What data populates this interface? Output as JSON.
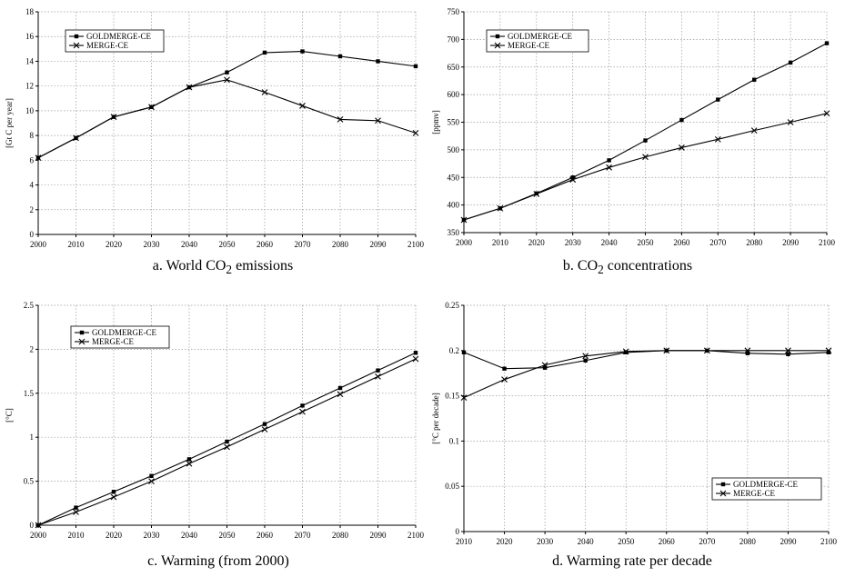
{
  "chart_data": [
    {
      "type": "line",
      "id": "a",
      "caption": {
        "prefix": "a. World CO",
        "sub": "2",
        "suffix": " emissions"
      },
      "ylabel": "[Gt C per year]",
      "x": [
        2000,
        2010,
        2020,
        2030,
        2040,
        2050,
        2060,
        2070,
        2080,
        2090,
        2100
      ],
      "xlim": [
        2000,
        2100
      ],
      "ylim": [
        0,
        18
      ],
      "yticks": [
        0,
        2,
        4,
        6,
        8,
        10,
        12,
        14,
        16,
        18
      ],
      "grid": true,
      "legend_position": "top-left",
      "series": [
        {
          "name": "GOLDMERGE-CE",
          "marker": "square",
          "values": [
            6.2,
            7.8,
            9.5,
            10.3,
            11.9,
            13.1,
            14.7,
            14.8,
            14.4,
            14.0,
            13.6
          ]
        },
        {
          "name": "MERGE-CE",
          "marker": "x",
          "values": [
            6.2,
            7.8,
            9.5,
            10.3,
            11.9,
            12.5,
            11.5,
            10.4,
            9.3,
            9.2,
            8.2
          ]
        }
      ]
    },
    {
      "type": "line",
      "id": "b",
      "caption": {
        "prefix": "b. CO",
        "sub": "2",
        "suffix": " concentrations"
      },
      "ylabel": "[ppmv]",
      "x": [
        2000,
        2010,
        2020,
        2030,
        2040,
        2050,
        2060,
        2070,
        2080,
        2090,
        2100
      ],
      "xlim": [
        2000,
        2100
      ],
      "ylim": [
        350,
        750
      ],
      "yticks": [
        350,
        400,
        450,
        500,
        550,
        600,
        650,
        700,
        750
      ],
      "grid": true,
      "legend_position": "top-left",
      "series": [
        {
          "name": "GOLDMERGE-CE",
          "marker": "square",
          "values": [
            373,
            394,
            421,
            450,
            481,
            517,
            554,
            591,
            627,
            658,
            693
          ]
        },
        {
          "name": "MERGE-CE",
          "marker": "x",
          "values": [
            373,
            394,
            420,
            446,
            468,
            487,
            504,
            519,
            535,
            550,
            566
          ]
        }
      ]
    },
    {
      "type": "line",
      "id": "c",
      "caption": {
        "prefix": "c. Warming (from 2000)",
        "sub": "",
        "suffix": ""
      },
      "ylabel": "[°C]",
      "x": [
        2000,
        2010,
        2020,
        2030,
        2040,
        2050,
        2060,
        2070,
        2080,
        2090,
        2100
      ],
      "xlim": [
        2000,
        2100
      ],
      "ylim": [
        0,
        2.5
      ],
      "yticks": [
        0,
        0.5,
        1,
        1.5,
        2,
        2.5
      ],
      "grid": true,
      "legend_position": "top-left",
      "series": [
        {
          "name": "GOLDMERGE-CE",
          "marker": "square",
          "values": [
            0,
            0.2,
            0.38,
            0.56,
            0.75,
            0.95,
            1.15,
            1.36,
            1.56,
            1.76,
            1.96
          ]
        },
        {
          "name": "MERGE-CE",
          "marker": "x",
          "values": [
            0,
            0.15,
            0.32,
            0.5,
            0.7,
            0.89,
            1.09,
            1.29,
            1.49,
            1.69,
            1.89
          ]
        }
      ]
    },
    {
      "type": "line",
      "id": "d",
      "caption": {
        "prefix": "d. Warming rate per decade",
        "sub": "",
        "suffix": ""
      },
      "ylabel": "[°C per decade]",
      "x": [
        2010,
        2020,
        2030,
        2040,
        2050,
        2060,
        2070,
        2080,
        2090,
        2100
      ],
      "xlim": [
        2010,
        2100
      ],
      "ylim": [
        0,
        0.25
      ],
      "yticks": [
        0,
        0.05,
        0.1,
        0.15,
        0.2,
        0.25
      ],
      "grid": true,
      "legend_position": "bottom-right",
      "series": [
        {
          "name": "GOLDMERGE-CE",
          "marker": "square",
          "values": [
            0.198,
            0.18,
            0.181,
            0.189,
            0.198,
            0.2,
            0.2,
            0.197,
            0.196,
            0.198
          ]
        },
        {
          "name": "MERGE-CE",
          "marker": "x",
          "values": [
            0.148,
            0.168,
            0.184,
            0.194,
            0.199,
            0.2,
            0.2,
            0.2,
            0.2,
            0.2
          ]
        }
      ]
    }
  ]
}
